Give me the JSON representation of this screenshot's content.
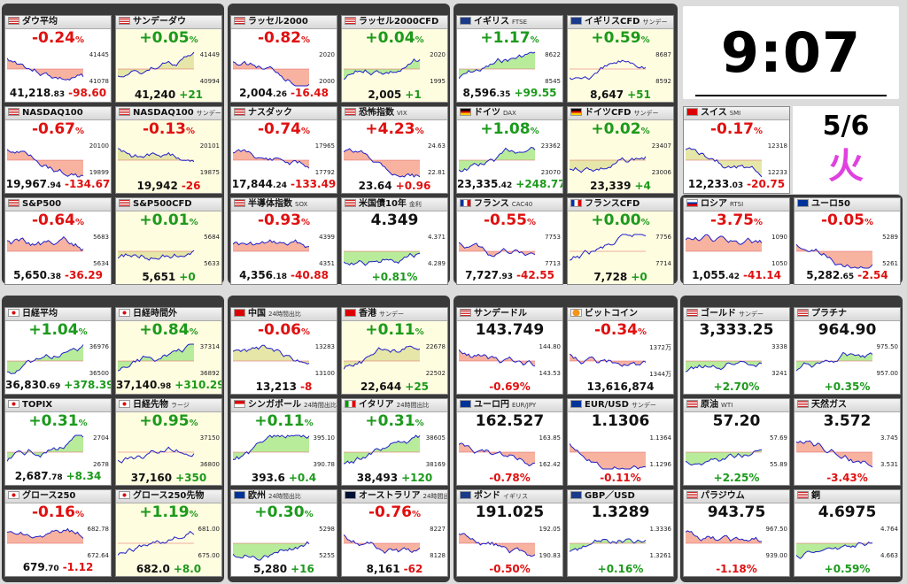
{
  "clock": {
    "time": "9:07",
    "date": "5/6",
    "weekday": "火"
  },
  "tiles": [
    {
      "id": "dow",
      "name": "ダウ平均",
      "sub": "",
      "flag": "us",
      "pct": "-0.24",
      "dir": "dn",
      "price": "41,218",
      "frac": ".83",
      "chg": "-98.60",
      "cdir": "dn",
      "axis": [
        "41445",
        "41078"
      ],
      "shade": "red",
      "yel": false
    },
    {
      "id": "sunday-dow",
      "name": "サンデーダウ",
      "sub": "",
      "flag": "us",
      "pct": "+0.05",
      "dir": "up",
      "price": "41,240",
      "frac": "",
      "chg": "+21",
      "cdir": "up",
      "axis": [
        "41449",
        "40994"
      ],
      "shade": "mix",
      "yel": true
    },
    {
      "id": "russell",
      "name": "ラッセル2000",
      "sub": "",
      "flag": "us",
      "pct": "-0.82",
      "dir": "dn",
      "price": "2,004",
      "frac": ".26",
      "chg": "-16.48",
      "cdir": "dn",
      "axis": [
        "2020",
        "2000"
      ],
      "shade": "red",
      "yel": false
    },
    {
      "id": "russell-cfd",
      "name": "ラッセル2000CFD",
      "sub": "",
      "flag": "us",
      "pct": "+0.04",
      "dir": "up",
      "price": "2,005",
      "frac": "",
      "chg": "+1",
      "cdir": "up",
      "axis": [
        "2020",
        "1995"
      ],
      "shade": "green",
      "yel": true
    },
    {
      "id": "uk",
      "name": "イギリス",
      "sub": "FTSE",
      "flag": "uk",
      "pct": "+1.17",
      "dir": "up",
      "price": "8,596",
      "frac": ".35",
      "chg": "+99.55",
      "cdir": "up",
      "axis": [
        "8622",
        "8545"
      ],
      "shade": "green",
      "yel": false
    },
    {
      "id": "uk-cfd",
      "name": "イギリスCFD",
      "sub": "サンデー",
      "flag": "uk",
      "pct": "+0.59",
      "dir": "up",
      "price": "8,647",
      "frac": "",
      "chg": "+51",
      "cdir": "up",
      "axis": [
        "8687",
        "8592"
      ],
      "shade": "none",
      "yel": true
    },
    {
      "id": "nasdaq100",
      "name": "NASDAQ100",
      "sub": "",
      "flag": "us",
      "pct": "-0.67",
      "dir": "dn",
      "price": "19,967",
      "frac": ".94",
      "chg": "-134.67",
      "cdir": "dn",
      "axis": [
        "20100",
        "19899"
      ],
      "shade": "red",
      "yel": false
    },
    {
      "id": "nasdaq100-sun",
      "name": "NASDAQ100",
      "sub": "サンデー",
      "flag": "us",
      "pct": "-0.13",
      "dir": "dn",
      "price": "19,942",
      "frac": "",
      "chg": "-26",
      "cdir": "dn",
      "axis": [
        "20101",
        "19875"
      ],
      "shade": "mix",
      "yel": true
    },
    {
      "id": "nasdaq",
      "name": "ナスダック",
      "sub": "",
      "flag": "us",
      "pct": "-0.74",
      "dir": "dn",
      "price": "17,844",
      "frac": ".24",
      "chg": "-133.49",
      "cdir": "dn",
      "axis": [
        "17965",
        "17792"
      ],
      "shade": "red",
      "yel": false
    },
    {
      "id": "vix",
      "name": "恐怖指数",
      "sub": "VIX",
      "flag": "us",
      "pct": "+4.23",
      "dir": "dn",
      "price": "23.64",
      "frac": "",
      "chg": "+0.96",
      "cdir": "dn",
      "axis": [
        "24.63",
        "22.81"
      ],
      "shade": "red",
      "yel": false
    },
    {
      "id": "germany",
      "name": "ドイツ",
      "sub": "DAX",
      "flag": "de",
      "pct": "+1.08",
      "dir": "up",
      "price": "23,335",
      "frac": ".42",
      "chg": "+248.77",
      "cdir": "up",
      "axis": [
        "23362",
        "23070"
      ],
      "shade": "green",
      "yel": false
    },
    {
      "id": "germany-cfd",
      "name": "ドイツCFD",
      "sub": "サンデー",
      "flag": "de",
      "pct": "+0.02",
      "dir": "up",
      "price": "23,339",
      "frac": "",
      "chg": "+4",
      "cdir": "up",
      "axis": [
        "23407",
        "23006"
      ],
      "shade": "mix",
      "yel": true
    },
    {
      "id": "sp500",
      "name": "S&P500",
      "sub": "",
      "flag": "us",
      "pct": "-0.64",
      "dir": "dn",
      "price": "5,650",
      "frac": ".38",
      "chg": "-36.29",
      "cdir": "dn",
      "axis": [
        "5683",
        "5634"
      ],
      "shade": "red",
      "yel": false
    },
    {
      "id": "sp500-cfd",
      "name": "S&P500CFD",
      "sub": "",
      "flag": "us",
      "pct": "+0.01",
      "dir": "up",
      "price": "5,651",
      "frac": "",
      "chg": "+0",
      "cdir": "up",
      "axis": [
        "5684",
        "5633"
      ],
      "shade": "mix",
      "yel": true
    },
    {
      "id": "sox",
      "name": "半導体指数",
      "sub": "SOX",
      "flag": "us",
      "pct": "-0.93",
      "dir": "dn",
      "price": "4,356",
      "frac": ".18",
      "chg": "-40.88",
      "cdir": "dn",
      "axis": [
        "4399",
        "4351"
      ],
      "shade": "red",
      "yel": false
    },
    {
      "id": "us10y",
      "name": "米国債10年",
      "sub": "金利",
      "flag": "us",
      "pct": "4.349",
      "dir": "nv",
      "price": "",
      "frac": "",
      "chg": "+0.81%",
      "cdir": "up",
      "axis": [
        "4.371",
        "4.289"
      ],
      "shade": "green",
      "yel": false,
      "bigpct": true
    },
    {
      "id": "france",
      "name": "フランス",
      "sub": "CAC40",
      "flag": "fr",
      "pct": "-0.55",
      "dir": "dn",
      "price": "7,727",
      "frac": ".93",
      "chg": "-42.55",
      "cdir": "dn",
      "axis": [
        "7753",
        "7713"
      ],
      "shade": "red",
      "yel": false
    },
    {
      "id": "france-cfd",
      "name": "フランスCFD",
      "sub": "",
      "flag": "fr",
      "pct": "+0.00",
      "dir": "up",
      "price": "7,728",
      "frac": "",
      "chg": "+0",
      "cdir": "up",
      "axis": [
        "7756",
        "7714"
      ],
      "shade": "none",
      "yel": true
    },
    {
      "id": "switzerland",
      "name": "スイス",
      "sub": "SMI",
      "flag": "ch",
      "pct": "-0.17",
      "dir": "dn",
      "price": "12,233",
      "frac": ".03",
      "chg": "-20.75",
      "cdir": "dn",
      "axis": [
        "12318",
        "12233"
      ],
      "shade": "mix",
      "yel": false
    },
    {
      "id": "russia",
      "name": "ロシア",
      "sub": "RTSI",
      "flag": "ru",
      "pct": "-3.75",
      "dir": "dn",
      "price": "1,055",
      "frac": ".42",
      "chg": "-41.14",
      "cdir": "dn",
      "axis": [
        "1090",
        "1050"
      ],
      "shade": "red",
      "yel": false
    },
    {
      "id": "euro50",
      "name": "ユーロ50",
      "sub": "",
      "flag": "eu",
      "pct": "-0.05",
      "dir": "dn",
      "price": "5,282",
      "frac": ".65",
      "chg": "-2.54",
      "cdir": "dn",
      "axis": [
        "5289",
        "5261"
      ],
      "shade": "red",
      "yel": false
    },
    {
      "id": "nikkei",
      "name": "日経平均",
      "sub": "",
      "flag": "jp",
      "pct": "+1.04",
      "dir": "up",
      "price": "36,830",
      "frac": ".69",
      "chg": "+378.39",
      "cdir": "up",
      "axis": [
        "36976",
        "36500"
      ],
      "shade": "green",
      "yel": false
    },
    {
      "id": "nikkei-night",
      "name": "日経時間外",
      "sub": "",
      "flag": "jp",
      "pct": "+0.84",
      "dir": "up",
      "price": "37,140",
      "frac": ".98",
      "chg": "+310.29",
      "cdir": "up",
      "axis": [
        "37314",
        "36892"
      ],
      "shade": "green",
      "yel": true
    },
    {
      "id": "china",
      "name": "中国",
      "sub": "24時間出比",
      "flag": "cn",
      "pct": "-0.06",
      "dir": "dn",
      "price": "13,213",
      "frac": "",
      "chg": "-8",
      "cdir": "dn",
      "axis": [
        "13283",
        "13100"
      ],
      "shade": "mix",
      "yel": false
    },
    {
      "id": "hongkong",
      "name": "香港",
      "sub": "サンデー",
      "flag": "hk",
      "pct": "+0.11",
      "dir": "up",
      "price": "22,644",
      "frac": "",
      "chg": "+25",
      "cdir": "up",
      "axis": [
        "22678",
        "22502"
      ],
      "shade": "mix",
      "yel": true
    },
    {
      "id": "usdjpy-sun",
      "name": "サンデードル",
      "sub": "",
      "flag": "us",
      "pct": "143.749",
      "dir": "nv",
      "price": "",
      "frac": "",
      "chg": "-0.69%",
      "cdir": "dn",
      "axis": [
        "144.80",
        "143.53"
      ],
      "shade": "red",
      "yel": false,
      "bigpct": true
    },
    {
      "id": "bitcoin",
      "name": "ビットコイン",
      "sub": "",
      "flag": "btc",
      "pct": "-0.34",
      "dir": "dn",
      "price": "13,616,874",
      "frac": "",
      "chg": "",
      "cdir": "dn",
      "axis": [
        "1372万",
        "1344万"
      ],
      "shade": "red",
      "yel": false
    },
    {
      "id": "gold",
      "name": "ゴールド",
      "sub": "サンデー",
      "flag": "us",
      "pct": "3,333.25",
      "dir": "nv",
      "price": "",
      "frac": "",
      "chg": "+2.70%",
      "cdir": "up",
      "axis": [
        "3338",
        "3241"
      ],
      "shade": "green",
      "yel": false,
      "bigpct": true
    },
    {
      "id": "platinum",
      "name": "プラチナ",
      "sub": "",
      "flag": "us",
      "pct": "964.90",
      "dir": "nv",
      "price": "",
      "frac": "",
      "chg": "+0.35%",
      "cdir": "up",
      "axis": [
        "975.50",
        "957.00"
      ],
      "shade": "green",
      "yel": false,
      "bigpct": true
    },
    {
      "id": "topix",
      "name": "TOPIX",
      "sub": "",
      "flag": "jp",
      "pct": "+0.31",
      "dir": "up",
      "price": "2,687",
      "frac": ".78",
      "chg": "+8.34",
      "cdir": "up",
      "axis": [
        "2704",
        "2678"
      ],
      "shade": "green",
      "yel": false
    },
    {
      "id": "nikkei-futures",
      "name": "日経先物",
      "sub": "ラージ",
      "flag": "jp",
      "pct": "+0.95",
      "dir": "up",
      "price": "37,160",
      "frac": "",
      "chg": "+350",
      "cdir": "up",
      "axis": [
        "37150",
        "36800"
      ],
      "shade": "none",
      "yel": true
    },
    {
      "id": "singapore",
      "name": "シンガポール",
      "sub": "24時間出比",
      "flag": "sg",
      "pct": "+0.11",
      "dir": "up",
      "price": "393.6",
      "frac": "",
      "chg": "+0.4",
      "cdir": "up",
      "axis": [
        "395.10",
        "390.78"
      ],
      "shade": "green",
      "yel": false
    },
    {
      "id": "italy",
      "name": "イタリア",
      "sub": "24時間出比",
      "flag": "it",
      "pct": "+0.31",
      "dir": "up",
      "price": "38,493",
      "frac": "",
      "chg": "+120",
      "cdir": "up",
      "axis": [
        "38605",
        "38169"
      ],
      "shade": "green",
      "yel": false
    },
    {
      "id": "eurjpy",
      "name": "ユーロ円",
      "sub": "EUR/JPY",
      "flag": "eu",
      "pct": "162.527",
      "dir": "nv",
      "price": "",
      "frac": "",
      "chg": "-0.78%",
      "cdir": "dn",
      "axis": [
        "163.85",
        "162.42"
      ],
      "shade": "red",
      "yel": false,
      "bigpct": true
    },
    {
      "id": "eurusd",
      "name": "EUR/USD",
      "sub": "サンデー",
      "flag": "eu",
      "pct": "1.1306",
      "dir": "nv",
      "price": "",
      "frac": "",
      "chg": "-0.11%",
      "cdir": "dn",
      "axis": [
        "1.1364",
        "1.1296"
      ],
      "shade": "red",
      "yel": false,
      "bigpct": true
    },
    {
      "id": "wti",
      "name": "原油",
      "sub": "WTI",
      "flag": "us",
      "pct": "57.20",
      "dir": "nv",
      "price": "",
      "frac": "",
      "chg": "+2.25%",
      "cdir": "up",
      "axis": [
        "57.69",
        "55.89"
      ],
      "shade": "green",
      "yel": false,
      "bigpct": true
    },
    {
      "id": "natgas",
      "name": "天然ガス",
      "sub": "",
      "flag": "us",
      "pct": "3.572",
      "dir": "nv",
      "price": "",
      "frac": "",
      "chg": "-3.43%",
      "cdir": "dn",
      "axis": [
        "3.745",
        "3.531"
      ],
      "shade": "red",
      "yel": false,
      "bigpct": true
    },
    {
      "id": "growth250",
      "name": "グロース250",
      "sub": "",
      "flag": "jp",
      "pct": "-0.16",
      "dir": "dn",
      "price": "679",
      "frac": ".70",
      "chg": "-1.12",
      "cdir": "dn",
      "axis": [
        "682.78",
        "672.64"
      ],
      "shade": "red",
      "yel": false
    },
    {
      "id": "growth250-fut",
      "name": "グロース250先物",
      "sub": "",
      "flag": "jp",
      "pct": "+1.19",
      "dir": "up",
      "price": "682.0",
      "frac": "",
      "chg": "+8.0",
      "cdir": "up",
      "axis": [
        "681.00",
        "675.00"
      ],
      "shade": "none",
      "yel": true
    },
    {
      "id": "europe",
      "name": "欧州",
      "sub": "24時間出比",
      "flag": "eu",
      "pct": "+0.30",
      "dir": "up",
      "price": "5,280",
      "frac": "",
      "chg": "+16",
      "cdir": "up",
      "axis": [
        "5298",
        "5255"
      ],
      "shade": "green",
      "yel": false
    },
    {
      "id": "australia",
      "name": "オーストラリア",
      "sub": "24時間出比",
      "flag": "au",
      "pct": "-0.76",
      "dir": "dn",
      "price": "8,161",
      "frac": "",
      "chg": "-62",
      "cdir": "dn",
      "axis": [
        "8227",
        "8128"
      ],
      "shade": "red",
      "yel": false
    },
    {
      "id": "gbpjpy",
      "name": "ポンド",
      "sub": "イギリス",
      "flag": "uk",
      "pct": "191.025",
      "dir": "nv",
      "price": "",
      "frac": "",
      "chg": "-0.50%",
      "cdir": "dn",
      "axis": [
        "192.05",
        "190.83"
      ],
      "shade": "red",
      "yel": false,
      "bigpct": true
    },
    {
      "id": "gbpusd",
      "name": "GBP／USD",
      "sub": "",
      "flag": "uk",
      "pct": "1.3289",
      "dir": "nv",
      "price": "",
      "frac": "",
      "chg": "+0.16%",
      "cdir": "up",
      "axis": [
        "1.3336",
        "1.3261"
      ],
      "shade": "green",
      "yel": false,
      "bigpct": true
    },
    {
      "id": "palladium",
      "name": "パラジウム",
      "sub": "",
      "flag": "us",
      "pct": "943.75",
      "dir": "nv",
      "price": "",
      "frac": "",
      "chg": "-1.18%",
      "cdir": "dn",
      "axis": [
        "967.50",
        "939.00"
      ],
      "shade": "red",
      "yel": false,
      "bigpct": true
    },
    {
      "id": "copper",
      "name": "銅",
      "sub": "",
      "flag": "us",
      "pct": "4.6975",
      "dir": "nv",
      "price": "",
      "frac": "",
      "chg": "+0.59%",
      "cdir": "up",
      "axis": [
        "4.764",
        "4.663"
      ],
      "shade": "green",
      "yel": false,
      "bigpct": true
    }
  ]
}
